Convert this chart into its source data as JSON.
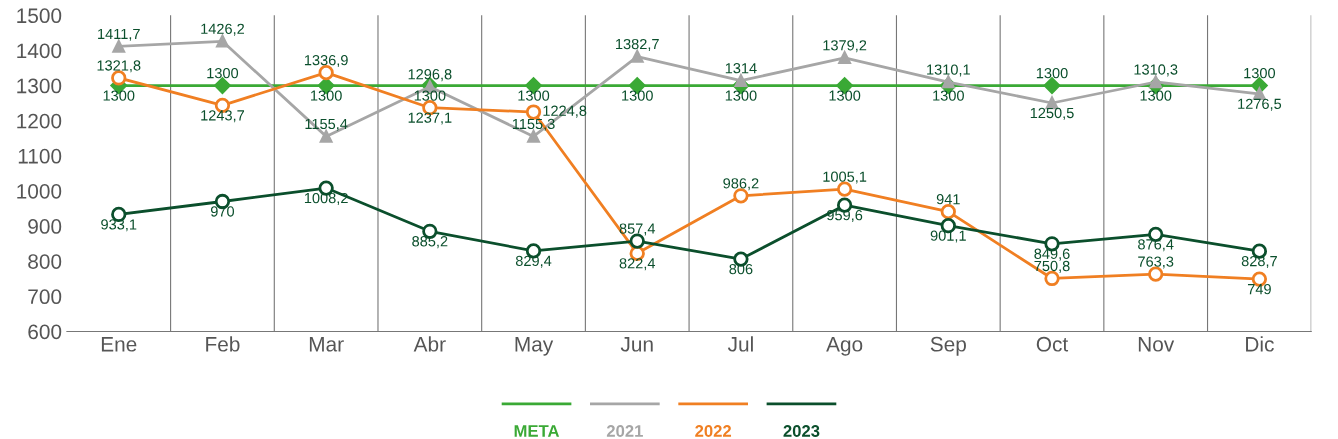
{
  "chart_data": {
    "type": "line",
    "categories": [
      "Ene",
      "Feb",
      "Mar",
      "Abr",
      "May",
      "Jun",
      "Jul",
      "Ago",
      "Sep",
      "Oct",
      "Nov",
      "Dic"
    ],
    "ylim": [
      600,
      1500
    ],
    "yticks": [
      600,
      700,
      800,
      900,
      1000,
      1100,
      1200,
      1300,
      1400,
      1500
    ],
    "grid": "x",
    "legend": "bottom",
    "series": [
      {
        "name": "META",
        "color": "#3aa935",
        "marker": "diamond",
        "values": [
          1300,
          1300,
          1300,
          1300,
          1300,
          1300,
          1300,
          1300,
          1300,
          1300,
          1300,
          1300
        ],
        "value_labels": [
          "1300",
          "1300",
          "1300",
          "1300",
          "1300",
          "1300",
          "1300",
          "1300",
          "1300",
          "1300",
          "1300",
          "1300"
        ]
      },
      {
        "name": "2021",
        "color": "#a6a6a6",
        "marker": "triangle",
        "values": [
          1411.7,
          1426.2,
          1155.4,
          1296.8,
          1155.3,
          1382.7,
          1314,
          1379.2,
          1310.1,
          1250.5,
          1310.3,
          1276.5
        ],
        "value_labels": [
          "1411,7",
          "1426,2",
          "1155,4",
          "1296,8",
          "1155,3",
          "1382,7",
          "1314",
          "1379,2",
          "1310,1",
          "1250,5",
          "1310,3",
          "1276,5"
        ]
      },
      {
        "name": "2022",
        "color": "#f07f22",
        "marker": "circle",
        "values": [
          1321.8,
          1243.7,
          1336.9,
          1237.1,
          1224.8,
          822.4,
          986.2,
          1005.1,
          941,
          750.8,
          763.3,
          749
        ],
        "value_labels": [
          "1321,8",
          "1243,7",
          "1336,9",
          "1237,1",
          "1224,8",
          "822,4",
          "986,2",
          "1005,1",
          "941",
          "750,8",
          "763,3",
          "749"
        ]
      },
      {
        "name": "2023",
        "color": "#0b4f2c",
        "marker": "circle",
        "values": [
          933.1,
          970,
          1008.2,
          885.2,
          829.4,
          857.4,
          806,
          959.6,
          901.1,
          849.6,
          876.4,
          828.7
        ],
        "value_labels": [
          "933,1",
          "970",
          "1008,2",
          "885,2",
          "829,4",
          "857,4",
          "806",
          "959,6",
          "901,1",
          "849,6",
          "876,4",
          "828,7"
        ]
      }
    ]
  }
}
